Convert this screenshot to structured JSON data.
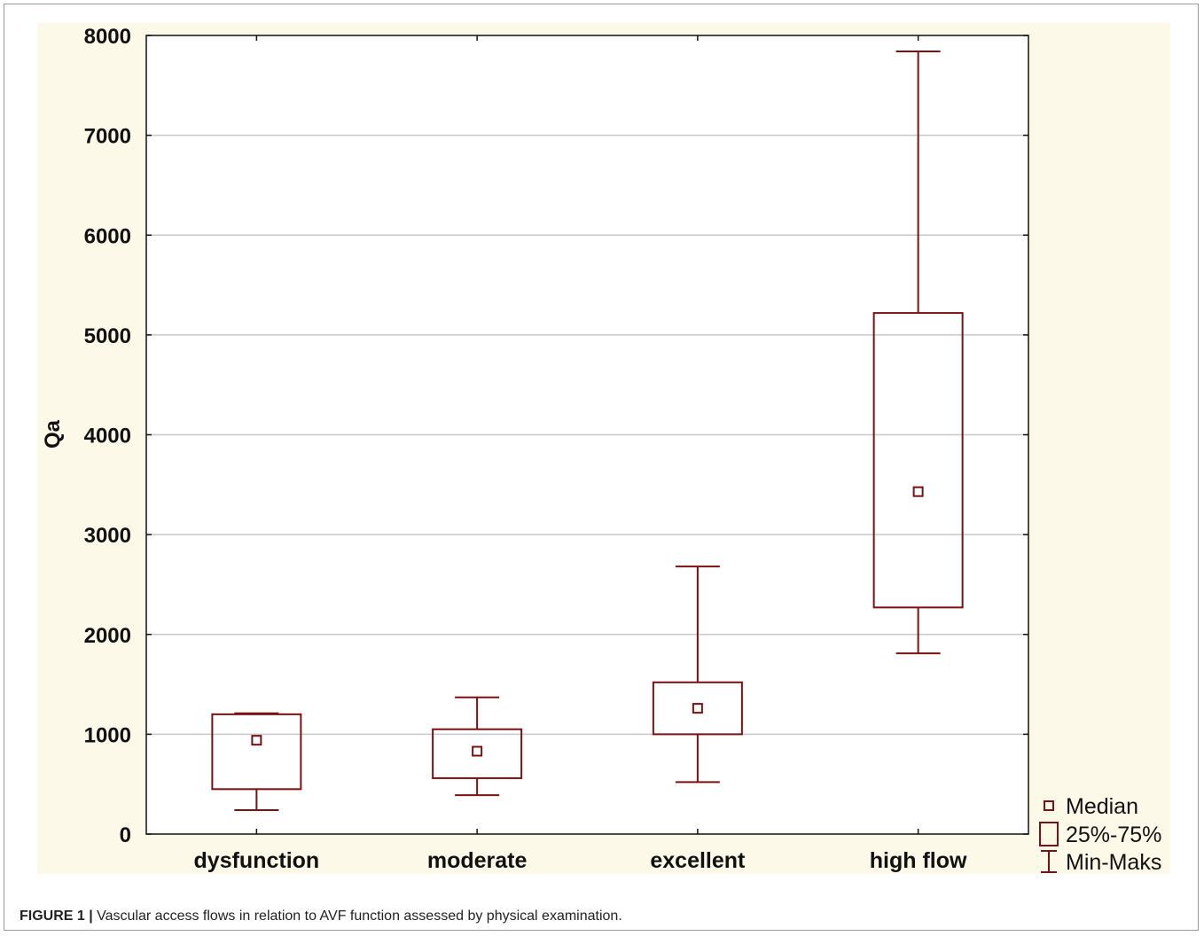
{
  "chart_data": {
    "type": "box",
    "ylabel": "Qa",
    "ylim": [
      0,
      8000
    ],
    "yticks": [
      0,
      1000,
      2000,
      3000,
      4000,
      5000,
      6000,
      7000,
      8000
    ],
    "grid": true,
    "legend_position": "bottom-right",
    "categories": [
      "dysfunction",
      "moderate",
      "excellent",
      "high flow"
    ],
    "boxes": [
      {
        "category": "dysfunction",
        "min": 240,
        "q1": 450,
        "median": 940,
        "q3": 1200,
        "max": 1210
      },
      {
        "category": "moderate",
        "min": 390,
        "q1": 560,
        "median": 830,
        "q3": 1050,
        "max": 1370
      },
      {
        "category": "excellent",
        "min": 520,
        "q1": 1000,
        "median": 1260,
        "q3": 1520,
        "max": 2680
      },
      {
        "category": "high flow",
        "min": 1810,
        "q1": 2270,
        "median": 3430,
        "q3": 5220,
        "max": 7840
      }
    ],
    "legend": [
      {
        "symbol": "median-square",
        "label": "Median"
      },
      {
        "symbol": "box",
        "label": "25%-75%"
      },
      {
        "symbol": "whisker",
        "label": "Min-Maks"
      }
    ],
    "colors": {
      "plot_background": "#fdf9e9",
      "box_stroke": "#7b1113",
      "grid": "#c8c8c8"
    }
  },
  "caption": {
    "label": "FIGURE 1 |",
    "text": "Vascular access flows in relation to AVF function assessed by physical examination."
  }
}
